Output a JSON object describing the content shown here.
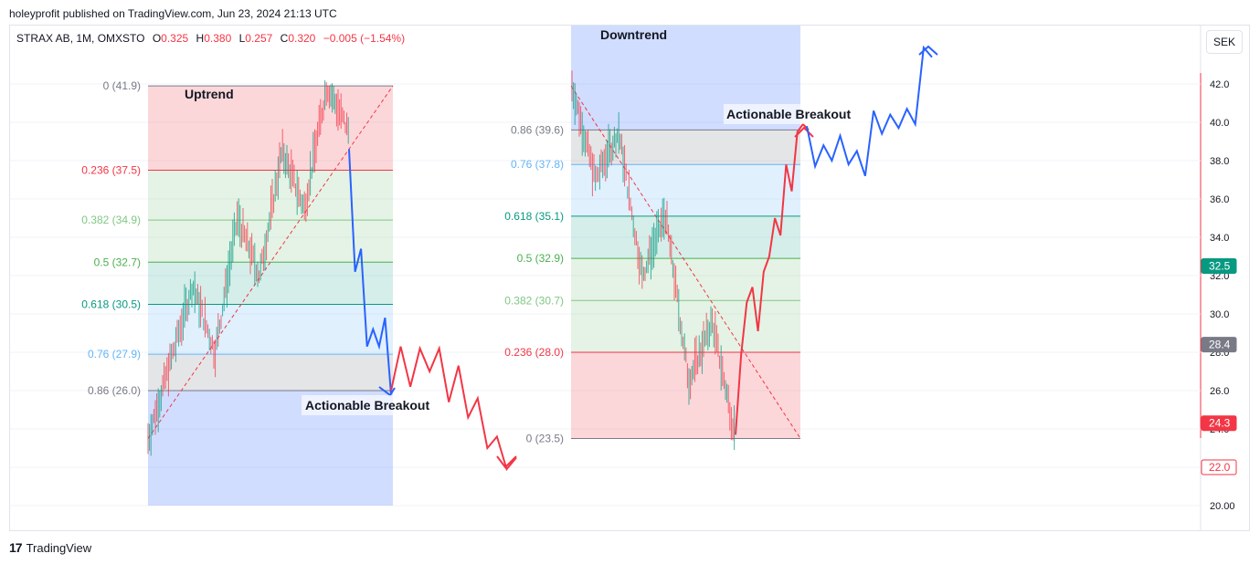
{
  "header": {
    "published": "holeyprofit published on TradingView.com, Jun 23, 2024 21:13 UTC"
  },
  "legend": {
    "symbol": "STRAX AB, 1M, OMXSTO",
    "o_label": "O",
    "o": "0.325",
    "h_label": "H",
    "h": "0.380",
    "l_label": "L",
    "l": "0.257",
    "c_label": "C",
    "c": "0.320",
    "change": "−0.005 (−1.54%)"
  },
  "currency": "SEK",
  "footer": {
    "brand": "TradingView",
    "logo": "17"
  },
  "colors": {
    "up": "#089981",
    "down": "#f23645",
    "blue": "#2962ff"
  },
  "chart_data": {
    "type": "line",
    "y_axis": {
      "ticks": [
        "42.0",
        "40.0",
        "38.0",
        "36.0",
        "34.0",
        "32.0",
        "30.0",
        "28.0",
        "26.0",
        "24.0",
        "22.0",
        "20.00"
      ],
      "min": 20,
      "max": 42
    },
    "price_labels": [
      {
        "text": "32.5",
        "color": "#089981"
      },
      {
        "text": "28.4",
        "color": "#787b86"
      },
      {
        "text": "24.3",
        "color": "#f23645"
      },
      {
        "text": "22.0",
        "color": "#f23645"
      }
    ],
    "annotations": [
      "Uptrend",
      "Downtrend",
      "Actionable Breakout",
      "Actionable Breakout"
    ],
    "fib_uptrend": [
      {
        "label": "0 (41.9)",
        "level": 0,
        "price": 41.9,
        "color": "#787b86"
      },
      {
        "label": "0.236 (37.5)",
        "level": 0.236,
        "price": 37.5,
        "color": "#f23645"
      },
      {
        "label": "0.382 (34.9)",
        "level": 0.382,
        "price": 34.9,
        "color": "#81c784"
      },
      {
        "label": "0.5 (32.7)",
        "level": 0.5,
        "price": 32.7,
        "color": "#4caf50"
      },
      {
        "label": "0.618 (30.5)",
        "level": 0.618,
        "price": 30.5,
        "color": "#089981"
      },
      {
        "label": "0.76 (27.9)",
        "level": 0.76,
        "price": 27.9,
        "color": "#64b5f6"
      },
      {
        "label": "0.86 (26.0)",
        "level": 0.86,
        "price": 26.0,
        "color": "#787b86"
      }
    ],
    "fib_downtrend": [
      {
        "label": "0.86 (39.6)",
        "level": 0.86,
        "price": 39.6,
        "color": "#787b86"
      },
      {
        "label": "0.76 (37.8)",
        "level": 0.76,
        "price": 37.8,
        "color": "#64b5f6"
      },
      {
        "label": "0.618 (35.1)",
        "level": 0.618,
        "price": 35.1,
        "color": "#089981"
      },
      {
        "label": "0.5 (32.9)",
        "level": 0.5,
        "price": 32.9,
        "color": "#4caf50"
      },
      {
        "label": "0.382 (30.7)",
        "level": 0.382,
        "price": 30.7,
        "color": "#81c784"
      },
      {
        "label": "0.236 (28.0)",
        "level": 0.236,
        "price": 28.0,
        "color": "#f23645"
      },
      {
        "label": "0 (23.5)",
        "level": 0,
        "price": 23.5,
        "color": "#787b86"
      }
    ],
    "uptrend_price_path": [
      23.5,
      27.5,
      31.5,
      28.0,
      35.0,
      32.0,
      38.5,
      35.5,
      41.9,
      39.5
    ],
    "downtrend_price_path": [
      41.9,
      37.0,
      39.5,
      32.0,
      35.2,
      26.5,
      29.6,
      23.6
    ],
    "projection_up_blue": [
      38.6,
      32.2,
      33.4,
      28.3,
      29.2,
      28.3,
      29.8,
      25.8
    ],
    "projection_up_red": [
      26.0,
      28.3,
      26.2,
      28.2,
      27.0,
      28.2,
      25.4,
      27.3,
      24.6,
      25.6,
      23.0,
      23.6,
      21.9,
      22.5
    ],
    "projection_down_red": [
      23.7,
      27.9,
      30.6,
      31.4,
      29.1,
      32.2,
      33.0,
      35.0,
      34.1,
      37.8,
      36.4,
      39.5,
      39.9,
      39.6
    ],
    "projection_down_blue": [
      39.8,
      37.7,
      38.8,
      38.0,
      39.3,
      37.8,
      38.5,
      37.2,
      40.6,
      39.4,
      40.4,
      39.7,
      40.7,
      39.9,
      43.9,
      43.4
    ]
  }
}
